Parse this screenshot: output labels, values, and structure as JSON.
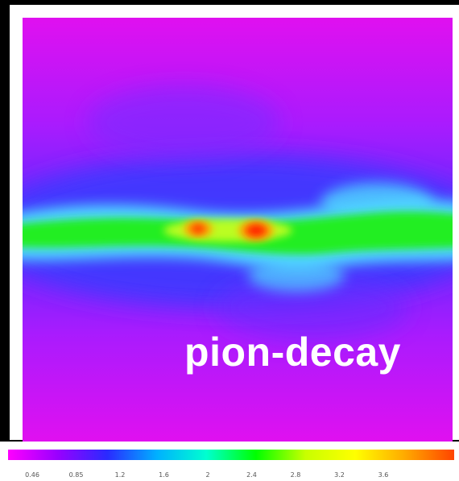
{
  "map": {
    "label": "pion-decay",
    "colors": {
      "background": "#e010f0",
      "low": "#8a00ff",
      "mid_blue": "#3a3aff",
      "cyan": "#4fd8ff",
      "green": "#22ee22",
      "peak": "#ff2200",
      "warm": "#ffaa00"
    }
  },
  "colorbar": {
    "ticks": [
      "0.46",
      "0.85",
      "1.2",
      "1.6",
      "2",
      "2.4",
      "2.8",
      "3.2",
      "3.6"
    ],
    "gradient": [
      "#ff00ff",
      "#9900ff",
      "#2a2aff",
      "#00b0ff",
      "#00ffd0",
      "#00ff00",
      "#c8ff00",
      "#ffff00",
      "#ffaa00",
      "#ff4400"
    ]
  }
}
